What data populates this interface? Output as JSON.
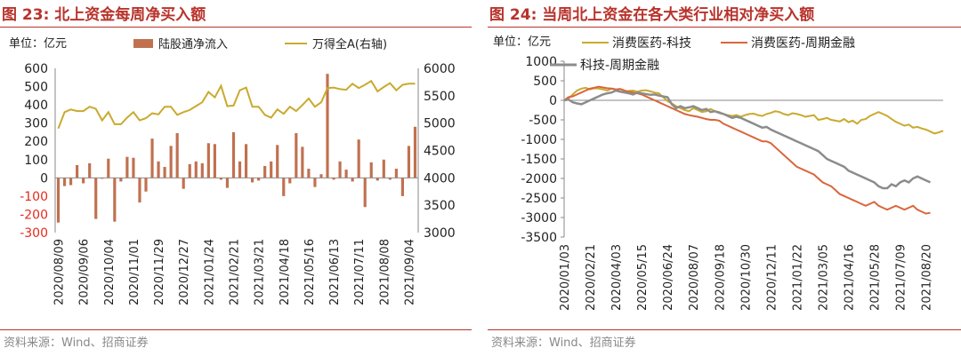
{
  "left": {
    "title": "图 23:  北上资金每周净买入额",
    "source": "资料来源：Wind、招商证券",
    "unit": "单位：亿元",
    "colors": {
      "bar": "#c0714f",
      "line": "#c9aa2e",
      "negative_tick": "#e8281e"
    }
  },
  "right": {
    "title": "图 24:  当周北上资金在各大类行业相对净买入额",
    "source": "资料来源：Wind、招商证券",
    "unit": "单位：亿元",
    "colors": {
      "s1": "#c9aa2e",
      "s2": "#d9653b",
      "s3": "#8c8c8c"
    }
  },
  "chart_data": [
    {
      "type": "bar+line",
      "unit": "单位：亿元",
      "y_left": {
        "lim": [
          -300,
          600
        ],
        "ticks": [
          -300,
          -200,
          -100,
          0,
          100,
          200,
          300,
          400,
          500,
          600
        ]
      },
      "y_right": {
        "lim": [
          3000,
          6000
        ],
        "ticks": [
          3000,
          3500,
          4000,
          4500,
          5000,
          5500,
          6000
        ]
      },
      "x_tick_labels": [
        "2020/08/09",
        "2020/09/06",
        "2020/10/04",
        "2020/11/01",
        "2020/11/29",
        "2020/12/27",
        "2021/01/24",
        "2021/02/21",
        "2021/03/21",
        "2021/04/18",
        "2021/05/16",
        "2021/06/13",
        "2021/07/11",
        "2021/08/08",
        "2021/09/04"
      ],
      "x_tick_index": [
        0,
        4,
        8,
        12,
        16,
        20,
        24,
        28,
        32,
        36,
        40,
        44,
        48,
        52,
        56
      ],
      "series": [
        {
          "name": "陆股通净流入",
          "kind": "bar",
          "values": [
            -245,
            -45,
            -40,
            70,
            -30,
            80,
            -225,
            -5,
            105,
            -240,
            -20,
            115,
            110,
            -135,
            -75,
            215,
            90,
            60,
            175,
            245,
            -60,
            75,
            90,
            80,
            190,
            185,
            -10,
            -55,
            250,
            90,
            185,
            -25,
            -15,
            65,
            90,
            180,
            -100,
            -30,
            245,
            170,
            50,
            -50,
            20,
            570,
            -10,
            90,
            45,
            -20,
            210,
            -160,
            85,
            -15,
            100,
            -10,
            50,
            -100,
            175,
            280
          ],
          "axis": "left"
        },
        {
          "name": "万得全A(右轴)",
          "kind": "line",
          "values": [
            4900,
            5200,
            5250,
            5220,
            5220,
            5300,
            5260,
            5050,
            5200,
            4980,
            4980,
            5100,
            5200,
            5050,
            5090,
            5180,
            5160,
            5300,
            5300,
            5150,
            5200,
            5240,
            5310,
            5380,
            5570,
            5470,
            5680,
            5310,
            5320,
            5600,
            5650,
            5300,
            5300,
            5150,
            5100,
            5250,
            5170,
            5300,
            5220,
            5330,
            5450,
            5300,
            5380,
            5640,
            5650,
            5620,
            5610,
            5720,
            5640,
            5700,
            5770,
            5580,
            5660,
            5730,
            5600,
            5700,
            5720,
            5720
          ],
          "axis": "right"
        }
      ]
    },
    {
      "type": "line",
      "unit": "单位：亿元",
      "ylim": [
        -3500,
        1000
      ],
      "yticks": [
        -3500,
        -3000,
        -2500,
        -2000,
        -1500,
        -1000,
        -500,
        0,
        500,
        1000
      ],
      "x_tick_labels": [
        "2020/01/03",
        "2020/02/21",
        "2020/04/03",
        "2020/05/15",
        "2020/06/24",
        "2020/08/07",
        "2020/09/18",
        "2020/10/30",
        "2020/12/11",
        "2021/01/22",
        "2021/03/05",
        "2021/04/16",
        "2021/05/28",
        "2021/07/09",
        "2021/08/20"
      ],
      "x_tick_index": [
        0,
        6,
        12,
        18,
        24,
        30,
        36,
        42,
        48,
        54,
        60,
        66,
        72,
        78,
        84
      ],
      "series": [
        {
          "name": "消费医药-科技",
          "values": [
            0,
            50,
            150,
            250,
            300,
            320,
            280,
            310,
            300,
            280,
            250,
            300,
            280,
            230,
            210,
            240,
            250,
            220,
            250,
            260,
            230,
            200,
            180,
            80,
            -20,
            -80,
            -150,
            -200,
            -250,
            -280,
            -200,
            -250,
            -300,
            -280,
            -220,
            -280,
            -300,
            -350,
            -380,
            -400,
            -380,
            -420,
            -380,
            -350,
            -340,
            -380,
            -400,
            -350,
            -320,
            -280,
            -300,
            -350,
            -380,
            -330,
            -350,
            -380,
            -420,
            -400,
            -380,
            -500,
            -480,
            -450,
            -500,
            -520,
            -540,
            -480,
            -560,
            -520,
            -600,
            -500,
            -480,
            -400,
            -350,
            -300,
            -350,
            -400,
            -480,
            -550,
            -600,
            -650,
            -620,
            -700,
            -680,
            -720,
            -750,
            -800,
            -850,
            -820,
            -780
          ]
        },
        {
          "name": "消费医药-周期金融",
          "values": [
            0,
            80,
            100,
            150,
            200,
            250,
            300,
            320,
            350,
            330,
            310,
            300,
            280,
            290,
            250,
            220,
            200,
            180,
            150,
            100,
            50,
            0,
            -50,
            -100,
            -150,
            -200,
            -250,
            -300,
            -350,
            -380,
            -400,
            -420,
            -450,
            -480,
            -500,
            -500,
            -520,
            -600,
            -650,
            -700,
            -750,
            -800,
            -850,
            -900,
            -950,
            -1000,
            -1050,
            -1050,
            -1100,
            -1200,
            -1300,
            -1400,
            -1500,
            -1600,
            -1700,
            -1750,
            -1800,
            -1850,
            -1900,
            -2000,
            -2100,
            -2150,
            -2200,
            -2300,
            -2400,
            -2450,
            -2500,
            -2550,
            -2600,
            -2650,
            -2700,
            -2650,
            -2600,
            -2700,
            -2750,
            -2800,
            -2750,
            -2700,
            -2750,
            -2800,
            -2750,
            -2700,
            -2800,
            -2850,
            -2900,
            -2880
          ]
        },
        {
          "name": "科技-周期金融",
          "values": [
            0,
            20,
            -50,
            -80,
            -100,
            -50,
            0,
            50,
            100,
            150,
            180,
            200,
            250,
            220,
            200,
            180,
            150,
            200,
            180,
            160,
            140,
            150,
            120,
            100,
            80,
            -100,
            -200,
            -150,
            -200,
            -180,
            -150,
            -200,
            -250,
            -220,
            -300,
            -280,
            -320,
            -350,
            -400,
            -450,
            -420,
            -450,
            -500,
            -550,
            -600,
            -650,
            -700,
            -680,
            -750,
            -800,
            -850,
            -900,
            -950,
            -1000,
            -1050,
            -1100,
            -1150,
            -1200,
            -1250,
            -1300,
            -1400,
            -1500,
            -1550,
            -1600,
            -1650,
            -1700,
            -1800,
            -1850,
            -1900,
            -1950,
            -2000,
            -2050,
            -2100,
            -2200,
            -2250,
            -2250,
            -2150,
            -2200,
            -2100,
            -2050,
            -2100,
            -2000,
            -1950,
            -2000,
            -2050,
            -2100
          ]
        }
      ]
    }
  ]
}
